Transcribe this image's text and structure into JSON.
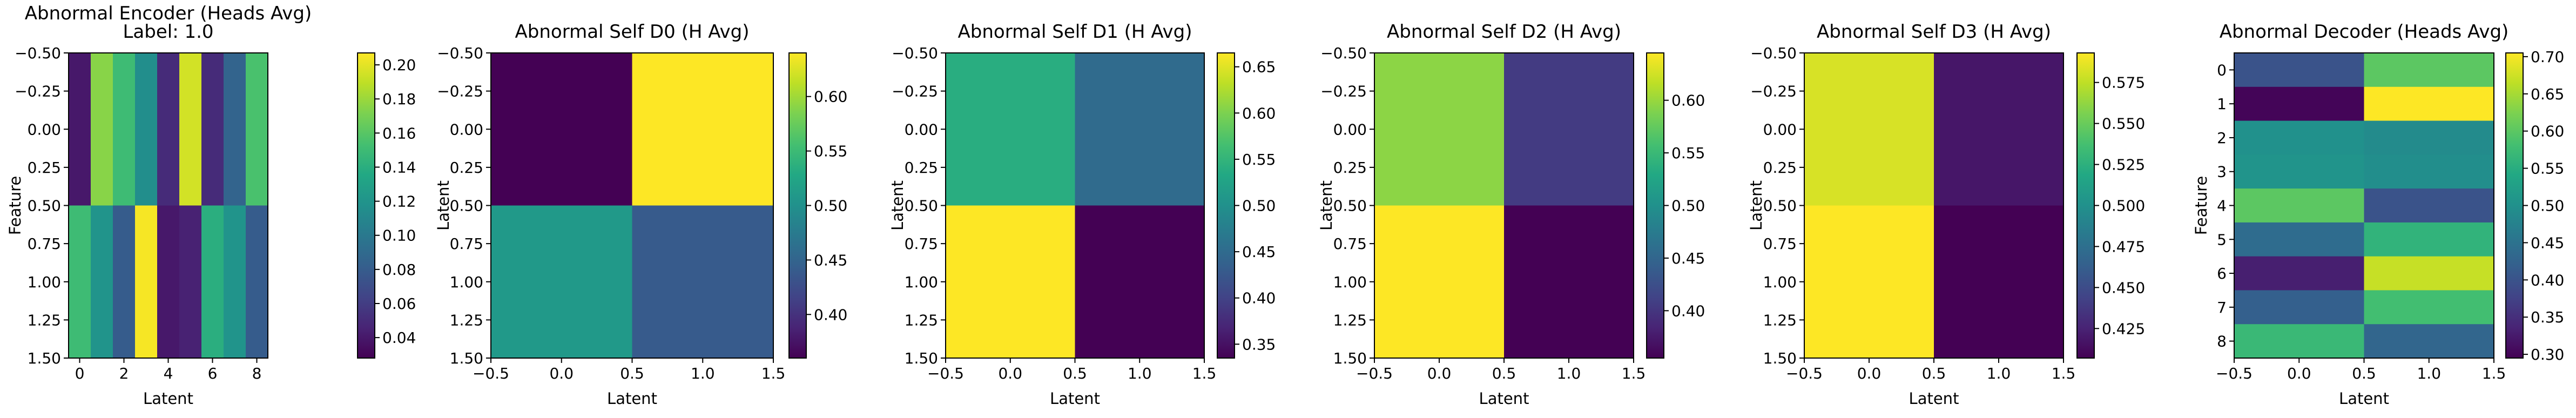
{
  "colormap": "viridis",
  "chart_data": [
    {
      "type": "heatmap",
      "title": "Abnormal Encoder (Heads Avg)",
      "subtitle": "Label: 1.0",
      "xlabel": "Latent",
      "ylabel": "Feature",
      "rows": 2,
      "cols": 9,
      "xlim": [
        -0.5,
        8.5
      ],
      "ylim": [
        1.5,
        -0.5
      ],
      "xticks": [
        0,
        2,
        4,
        6,
        8
      ],
      "yticks": [
        -0.5,
        -0.25,
        0.0,
        0.25,
        0.5,
        0.75,
        1.0,
        1.25,
        1.5
      ],
      "xtick_labels": [
        "0",
        "2",
        "4",
        "6",
        "8"
      ],
      "ytick_labels": [
        "−0.50",
        "−0.25",
        "0.00",
        "0.25",
        "0.50",
        "0.75",
        "1.00",
        "1.25",
        "1.50"
      ],
      "values": [
        [
          0.04,
          0.175,
          0.15,
          0.115,
          0.05,
          0.195,
          0.05,
          0.085,
          0.155
        ],
        [
          0.15,
          0.12,
          0.08,
          0.205,
          0.04,
          0.045,
          0.14,
          0.12,
          0.08
        ]
      ],
      "vmin": 0.028,
      "vmax": 0.207,
      "cbar_ticks": [
        0.04,
        0.06,
        0.08,
        0.1,
        0.12,
        0.14,
        0.16,
        0.18,
        0.2
      ],
      "cbar_tick_labels": [
        "0.04",
        "0.06",
        "0.08",
        "0.10",
        "0.12",
        "0.14",
        "0.16",
        "0.18",
        "0.20"
      ]
    },
    {
      "type": "heatmap",
      "title": "Abnormal Self D0 (H Avg)",
      "xlabel": "Latent",
      "ylabel": "Latent",
      "rows": 2,
      "cols": 2,
      "xlim": [
        -0.5,
        1.5
      ],
      "ylim": [
        1.5,
        -0.5
      ],
      "xticks": [
        -0.5,
        0.0,
        0.5,
        1.0,
        1.5
      ],
      "yticks": [
        -0.5,
        -0.25,
        0.0,
        0.25,
        0.5,
        0.75,
        1.0,
        1.25,
        1.5
      ],
      "xtick_labels": [
        "−0.5",
        "0.0",
        "0.5",
        "1.0",
        "1.5"
      ],
      "ytick_labels": [
        "−0.50",
        "−0.25",
        "0.00",
        "0.25",
        "0.50",
        "0.75",
        "1.00",
        "1.25",
        "1.50"
      ],
      "values": [
        [
          0.36,
          0.64
        ],
        [
          0.51,
          0.44
        ]
      ],
      "vmin": 0.36,
      "vmax": 0.64,
      "cbar_ticks": [
        0.4,
        0.45,
        0.5,
        0.55,
        0.6
      ],
      "cbar_tick_labels": [
        "0.40",
        "0.45",
        "0.50",
        "0.55",
        "0.60"
      ]
    },
    {
      "type": "heatmap",
      "title": "Abnormal Self D1 (H Avg)",
      "xlabel": "Latent",
      "ylabel": "Latent",
      "rows": 2,
      "cols": 2,
      "xlim": [
        -0.5,
        1.5
      ],
      "ylim": [
        1.5,
        -0.5
      ],
      "xticks": [
        -0.5,
        0.0,
        0.5,
        1.0,
        1.5
      ],
      "yticks": [
        -0.5,
        -0.25,
        0.0,
        0.25,
        0.5,
        0.75,
        1.0,
        1.25,
        1.5
      ],
      "xtick_labels": [
        "−0.5",
        "0.0",
        "0.5",
        "1.0",
        "1.5"
      ],
      "ytick_labels": [
        "−0.50",
        "−0.25",
        "0.00",
        "0.25",
        "0.50",
        "0.75",
        "1.00",
        "1.25",
        "1.50"
      ],
      "values": [
        [
          0.54,
          0.45
        ],
        [
          0.665,
          0.335
        ]
      ],
      "vmin": 0.335,
      "vmax": 0.665,
      "cbar_ticks": [
        0.35,
        0.4,
        0.45,
        0.5,
        0.55,
        0.6,
        0.65
      ],
      "cbar_tick_labels": [
        "0.35",
        "0.40",
        "0.45",
        "0.50",
        "0.55",
        "0.60",
        "0.65"
      ]
    },
    {
      "type": "heatmap",
      "title": "Abnormal Self D2 (H Avg)",
      "xlabel": "Latent",
      "ylabel": "Latent",
      "rows": 2,
      "cols": 2,
      "xlim": [
        -0.5,
        1.5
      ],
      "ylim": [
        1.5,
        -0.5
      ],
      "xticks": [
        -0.5,
        0.0,
        0.5,
        1.0,
        1.5
      ],
      "yticks": [
        -0.5,
        -0.25,
        0.0,
        0.25,
        0.5,
        0.75,
        1.0,
        1.25,
        1.5
      ],
      "xtick_labels": [
        "−0.5",
        "0.0",
        "0.5",
        "1.0",
        "1.5"
      ],
      "ytick_labels": [
        "−0.50",
        "−0.25",
        "0.00",
        "0.25",
        "0.50",
        "0.75",
        "1.00",
        "1.25",
        "1.50"
      ],
      "values": [
        [
          0.595,
          0.405
        ],
        [
          0.645,
          0.355
        ]
      ],
      "vmin": 0.355,
      "vmax": 0.645,
      "cbar_ticks": [
        0.4,
        0.45,
        0.5,
        0.55,
        0.6
      ],
      "cbar_tick_labels": [
        "0.40",
        "0.45",
        "0.50",
        "0.55",
        "0.60"
      ]
    },
    {
      "type": "heatmap",
      "title": "Abnormal Self D3 (H Avg)",
      "xlabel": "Latent",
      "ylabel": "Latent",
      "rows": 2,
      "cols": 2,
      "xlim": [
        -0.5,
        1.5
      ],
      "ylim": [
        1.5,
        -0.5
      ],
      "xticks": [
        -0.5,
        0.0,
        0.5,
        1.0,
        1.5
      ],
      "yticks": [
        -0.5,
        -0.25,
        0.0,
        0.25,
        0.5,
        0.75,
        1.0,
        1.25,
        1.5
      ],
      "xtick_labels": [
        "−0.5",
        "0.0",
        "0.5",
        "1.0",
        "1.5"
      ],
      "ytick_labels": [
        "−0.50",
        "−0.25",
        "0.00",
        "0.25",
        "0.50",
        "0.75",
        "1.00",
        "1.25",
        "1.50"
      ],
      "values": [
        [
          0.582,
          0.418
        ],
        [
          0.593,
          0.407
        ]
      ],
      "vmin": 0.407,
      "vmax": 0.593,
      "cbar_ticks": [
        0.425,
        0.45,
        0.475,
        0.5,
        0.525,
        0.55,
        0.575
      ],
      "cbar_tick_labels": [
        "0.425",
        "0.450",
        "0.475",
        "0.500",
        "0.525",
        "0.550",
        "0.575"
      ]
    },
    {
      "type": "heatmap",
      "title": "Abnormal Decoder (Heads Avg)",
      "xlabel": "Latent",
      "ylabel": "Feature",
      "rows": 9,
      "cols": 2,
      "xlim": [
        -0.5,
        1.5
      ],
      "ylim": [
        8.5,
        -0.5
      ],
      "xticks": [
        -0.5,
        0.0,
        0.5,
        1.0,
        1.5
      ],
      "yticks": [
        0,
        1,
        2,
        3,
        4,
        5,
        6,
        7,
        8
      ],
      "xtick_labels": [
        "−0.5",
        "0.0",
        "0.5",
        "1.0",
        "1.5"
      ],
      "ytick_labels": [
        "0",
        "1",
        "2",
        "3",
        "4",
        "5",
        "6",
        "7",
        "8"
      ],
      "values": [
        [
          0.4,
          0.6
        ],
        [
          0.3,
          0.705
        ],
        [
          0.5,
          0.49
        ],
        [
          0.505,
          0.495
        ],
        [
          0.6,
          0.4
        ],
        [
          0.44,
          0.56
        ],
        [
          0.33,
          0.67
        ],
        [
          0.42,
          0.58
        ],
        [
          0.57,
          0.43
        ]
      ],
      "vmin": 0.295,
      "vmax": 0.705,
      "cbar_ticks": [
        0.3,
        0.35,
        0.4,
        0.45,
        0.5,
        0.55,
        0.6,
        0.65,
        0.7
      ],
      "cbar_tick_labels": [
        "0.30",
        "0.35",
        "0.40",
        "0.45",
        "0.50",
        "0.55",
        "0.60",
        "0.65",
        "0.70"
      ]
    }
  ]
}
